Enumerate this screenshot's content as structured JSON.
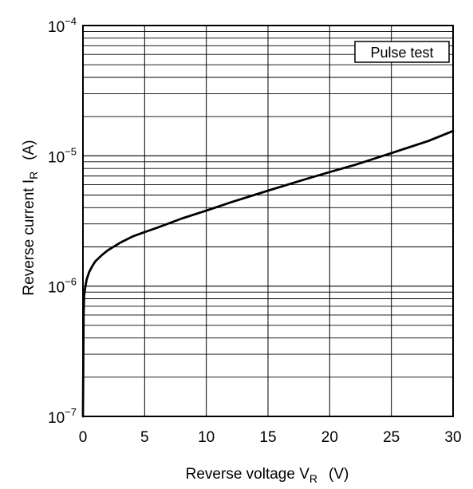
{
  "chart_data": {
    "type": "line",
    "y_scale": "log",
    "grid": true,
    "xlim": [
      0,
      30
    ],
    "ylim": [
      1e-07,
      0.0001
    ],
    "x_ticks": [
      {
        "value": 0,
        "label": "0"
      },
      {
        "value": 5,
        "label": "5"
      },
      {
        "value": 10,
        "label": "10"
      },
      {
        "value": 15,
        "label": "15"
      },
      {
        "value": 20,
        "label": "20"
      },
      {
        "value": 25,
        "label": "25"
      },
      {
        "value": 30,
        "label": "30"
      }
    ],
    "y_ticks": [
      {
        "value": 1e-07,
        "base": "10",
        "exp": "−7"
      },
      {
        "value": 1e-06,
        "base": "10",
        "exp": "−6"
      },
      {
        "value": 1e-05,
        "base": "10",
        "exp": "−5"
      },
      {
        "value": 0.0001,
        "base": "10",
        "exp": "−4"
      }
    ],
    "xlabel": {
      "main": "Reverse voltage   V",
      "sub": "R",
      "unit": "(V)"
    },
    "ylabel": {
      "main": "Reverse current   I",
      "sub": "R",
      "unit": "(A)"
    },
    "annotation": "Pulse test",
    "series": [
      {
        "x": [
          0,
          0.05,
          0.1,
          0.2,
          0.3,
          0.5,
          0.75,
          1,
          1.5,
          2,
          3,
          4,
          5,
          6,
          8,
          10,
          12,
          15,
          18,
          20,
          22,
          25,
          28,
          30
        ],
        "y": [
          1e-07,
          6e-07,
          8.5e-07,
          1e-06,
          1.12e-06,
          1.28e-06,
          1.42e-06,
          1.55e-06,
          1.72e-06,
          1.88e-06,
          2.15e-06,
          2.4e-06,
          2.6e-06,
          2.8e-06,
          3.3e-06,
          3.8e-06,
          4.4e-06,
          5.4e-06,
          6.6e-06,
          7.5e-06,
          8.5e-06,
          1.05e-05,
          1.3e-05,
          1.55e-05
        ]
      }
    ]
  }
}
